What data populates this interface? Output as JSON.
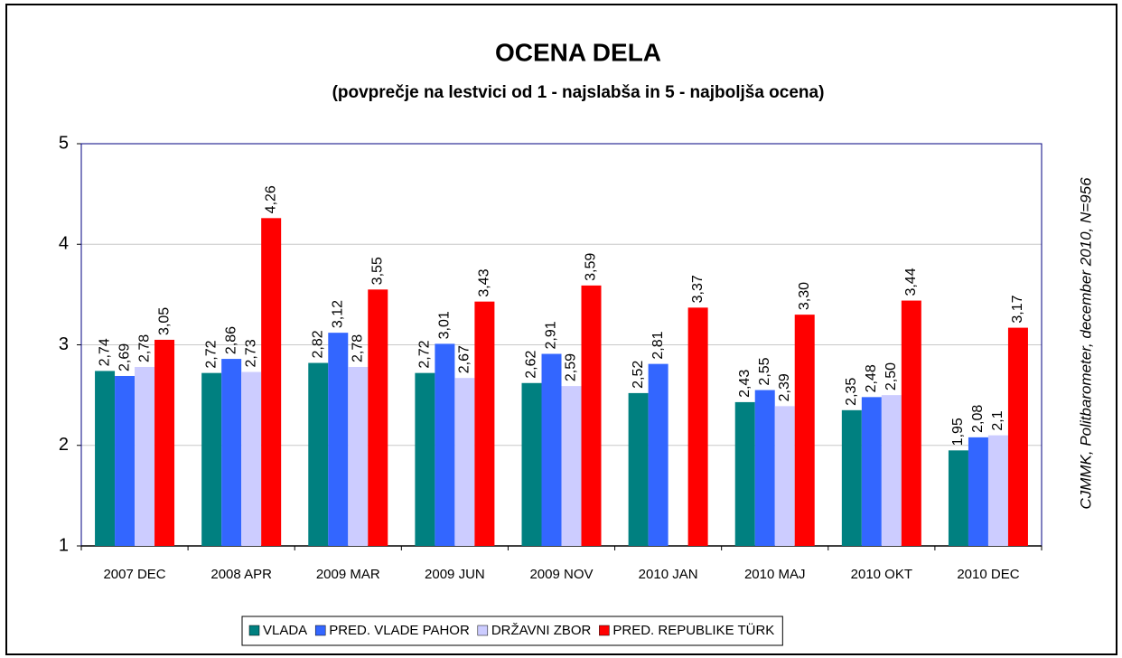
{
  "chart_data": {
    "type": "bar",
    "title": "OCENA DELA",
    "subtitle": "(povprečje na lestvici od 1 - najslabša in 5 - najboljša ocena)",
    "annotation": "CJMMK, Politbarometer, december 2010, N=956",
    "categories": [
      "2007 DEC",
      "2008 APR",
      "2009 MAR",
      "2009 JUN",
      "2009 NOV",
      "2010 JAN",
      "2010 MAJ",
      "2010 OKT",
      "2010 DEC"
    ],
    "series": [
      {
        "name": "VLADA",
        "color": "#008080",
        "values": [
          2.74,
          2.72,
          2.82,
          2.72,
          2.62,
          2.52,
          2.43,
          2.35,
          1.95
        ],
        "value_labels": [
          "2,74",
          "2,72",
          "2,82",
          "2,72",
          "2,62",
          "2,52",
          "2,43",
          "2,35",
          "1,95"
        ]
      },
      {
        "name": "PRED. VLADE PAHOR",
        "color": "#3366ff",
        "values": [
          2.69,
          2.86,
          3.12,
          3.01,
          2.91,
          2.81,
          2.55,
          2.48,
          2.08
        ],
        "value_labels": [
          "2,69",
          "2,86",
          "3,12",
          "3,01",
          "2,91",
          "2,81",
          "2,55",
          "2,48",
          "2,08"
        ]
      },
      {
        "name": "DRŽAVNI ZBOR",
        "color": "#ccccff",
        "values": [
          2.78,
          2.73,
          2.78,
          2.67,
          2.59,
          null,
          2.39,
          2.5,
          2.1
        ],
        "value_labels": [
          "2,78",
          "2,73",
          "2,78",
          "2,67",
          "2,59",
          null,
          "2,39",
          "2,50",
          "2,1"
        ]
      },
      {
        "name": "PRED. REPUBLIKE TÜRK",
        "color": "#ff0000",
        "values": [
          3.05,
          4.26,
          3.55,
          3.43,
          3.59,
          3.37,
          3.3,
          3.44,
          3.17
        ],
        "value_labels": [
          "3,05",
          "4,26",
          "3,55",
          "3,43",
          "3,59",
          "3,37",
          "3,30",
          "3,44",
          "3,17"
        ]
      }
    ],
    "ylim": [
      1,
      5
    ],
    "yticks": [
      1,
      2,
      3,
      4,
      5
    ],
    "grid": true,
    "legend": "bottom"
  }
}
